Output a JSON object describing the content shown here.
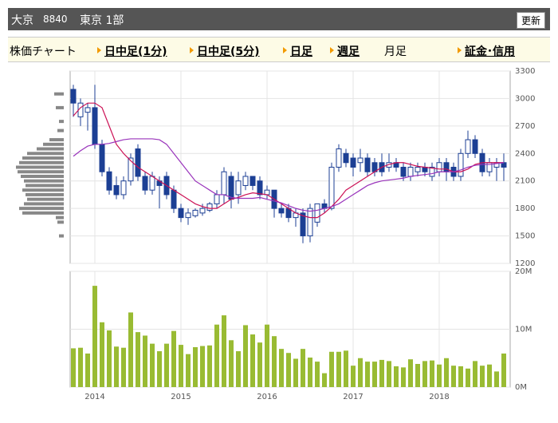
{
  "header": {
    "name": "大京",
    "code": "8840",
    "market": "東京 1部",
    "button": "更新"
  },
  "tabs": [
    "株価チャート",
    "日中足(1分)",
    "日中足(5分)",
    "日足",
    "週足",
    "月足",
    "証金･信用"
  ],
  "chart_data": [
    {
      "type": "candlestick",
      "categories": [
        null,
        null,
        null,
        "2014",
        null,
        null,
        null,
        null,
        null,
        null,
        null,
        null,
        null,
        null,
        null,
        "2015",
        null,
        null,
        null,
        null,
        null,
        null,
        null,
        null,
        null,
        null,
        null,
        "2016",
        null,
        null,
        null,
        null,
        null,
        null,
        null,
        null,
        null,
        null,
        null,
        "2017",
        null,
        null,
        null,
        null,
        null,
        null,
        null,
        null,
        null,
        null,
        null,
        "2018",
        null,
        null,
        null,
        null,
        null,
        null,
        null,
        null,
        null
      ],
      "open": [
        3100,
        2800,
        2850,
        2900,
        2500,
        2200,
        2050,
        1950,
        2100,
        2450,
        2150,
        2000,
        2100,
        2150,
        2000,
        1800,
        1700,
        1720,
        1750,
        1780,
        1850,
        1950,
        2150,
        1950,
        2050,
        2150,
        2100,
        1950,
        2000,
        1800,
        1800,
        1700,
        1750,
        1500,
        1650,
        1850,
        1800,
        2250,
        2400,
        2350,
        2300,
        2350,
        2300,
        2300,
        2250,
        2300,
        2250,
        2150,
        2200,
        2250,
        2150,
        2200,
        2300,
        2250,
        2150,
        2400,
        2550,
        2400,
        2200,
        2250,
        2300
      ],
      "high": [
        3150,
        3000,
        2950,
        3150,
        2550,
        2250,
        2150,
        2150,
        2400,
        2500,
        2200,
        2200,
        2150,
        2200,
        2050,
        1850,
        1800,
        1800,
        1850,
        1870,
        2000,
        2250,
        2200,
        2200,
        2200,
        2150,
        2150,
        2050,
        2000,
        1850,
        1850,
        1800,
        1800,
        1850,
        1850,
        1900,
        2300,
        2500,
        2450,
        2400,
        2450,
        2400,
        2350,
        2400,
        2400,
        2350,
        2300,
        2300,
        2300,
        2300,
        2300,
        2350,
        2350,
        2300,
        2450,
        2650,
        2600,
        2450,
        2350,
        2350,
        2400
      ],
      "low": [
        2800,
        2700,
        2650,
        2450,
        2150,
        1950,
        1900,
        1900,
        2050,
        2100,
        1950,
        1950,
        1800,
        1900,
        1750,
        1650,
        1620,
        1700,
        1720,
        1760,
        1800,
        1850,
        1800,
        1850,
        2000,
        2000,
        1900,
        1900,
        1700,
        1700,
        1650,
        1600,
        1420,
        1430,
        1600,
        1750,
        1780,
        2200,
        2250,
        2150,
        2200,
        2150,
        2150,
        2150,
        2200,
        2200,
        2100,
        2100,
        2150,
        2150,
        2100,
        2150,
        2100,
        2100,
        2100,
        2350,
        2350,
        2150,
        2150,
        2100,
        2100
      ],
      "close": [
        2950,
        2950,
        2900,
        2500,
        2200,
        2000,
        1950,
        2100,
        2350,
        2150,
        2000,
        2150,
        2050,
        1950,
        1800,
        1700,
        1750,
        1780,
        1800,
        1850,
        1950,
        2200,
        1900,
        2100,
        2150,
        2050,
        1950,
        2000,
        1800,
        1750,
        1700,
        1750,
        1500,
        1800,
        1850,
        1800,
        2250,
        2450,
        2300,
        2250,
        2350,
        2200,
        2200,
        2200,
        2300,
        2250,
        2150,
        2250,
        2250,
        2200,
        2250,
        2300,
        2200,
        2150,
        2400,
        2550,
        2400,
        2200,
        2300,
        2300,
        2250
      ],
      "up_color": "#ffffff",
      "down_color": "#1c3f94",
      "moving_averages": [
        {
          "color": "#cc1155",
          "values": [
            2810,
            2900,
            2950,
            2950,
            2900,
            2700,
            2500,
            2400,
            2320,
            2250,
            2200,
            2150,
            2100,
            2050,
            2000,
            1950,
            1900,
            1850,
            1820,
            1800,
            1800,
            1850,
            1900,
            1920,
            1950,
            1970,
            1960,
            1950,
            1900,
            1850,
            1800,
            1750,
            1720,
            1700,
            1700,
            1750,
            1820,
            1900,
            2000,
            2050,
            2100,
            2150,
            2200,
            2250,
            2280,
            2300,
            2300,
            2280,
            2260,
            2250,
            2240,
            2230,
            2230,
            2200,
            2200,
            2230,
            2280,
            2300,
            2300,
            2300,
            2300
          ]
        },
        {
          "color": "#9933bb",
          "values": [
            2370,
            2430,
            2480,
            2500,
            2500,
            2510,
            2530,
            2550,
            2560,
            2560,
            2560,
            2560,
            2550,
            2500,
            2400,
            2300,
            2200,
            2100,
            2050,
            2000,
            1950,
            1950,
            1920,
            1910,
            1910,
            1910,
            1920,
            1900,
            1880,
            1860,
            1830,
            1800,
            1780,
            1770,
            1780,
            1800,
            1820,
            1850,
            1900,
            1950,
            2000,
            2050,
            2080,
            2100,
            2110,
            2120,
            2130,
            2150,
            2160,
            2170,
            2180,
            2200,
            2200,
            2200,
            2220,
            2250,
            2270,
            2280,
            2280,
            2290,
            2300
          ]
        }
      ],
      "price_volume_profile": {
        "color": "#888888",
        "prices": [
          3050,
          2900,
          2750,
          2650,
          2550,
          2500,
          2450,
          2400,
          2350,
          2300,
          2250,
          2200,
          2150,
          2100,
          2050,
          2000,
          1950,
          1900,
          1850,
          1800,
          1750,
          1700,
          1650,
          1500
        ],
        "values": [
          12,
          10,
          6,
          8,
          18,
          26,
          34,
          46,
          52,
          56,
          60,
          58,
          54,
          50,
          48,
          52,
          48,
          46,
          50,
          56,
          52,
          10,
          8,
          6
        ]
      },
      "ylim": [
        1200,
        3300
      ],
      "yticks": [
        3300,
        3000,
        2700,
        2400,
        2100,
        1800,
        1500,
        1200
      ],
      "grid": true
    },
    {
      "type": "bar",
      "color": "#99bb33",
      "values": [
        6.7,
        6.8,
        5.8,
        17.5,
        11.2,
        9.8,
        7.0,
        6.8,
        12.9,
        9.5,
        8.9,
        7.5,
        6.2,
        7.5,
        9.7,
        7.3,
        5.7,
        6.9,
        7.1,
        7.2,
        10.8,
        12.4,
        8.1,
        6.2,
        10.7,
        9.1,
        7.7,
        10.8,
        8.8,
        6.6,
        5.9,
        4.9,
        6.6,
        5.1,
        4.4,
        2.4,
        6.1,
        6.1,
        6.3,
        3.7,
        5.0,
        4.4,
        4.4,
        4.7,
        4.5,
        3.6,
        3.4,
        4.8,
        4.0,
        4.5,
        4.6,
        3.9,
        5.0,
        3.7,
        3.6,
        3.2,
        4.5,
        3.7,
        3.9,
        2.7,
        5.8
      ],
      "ylim": [
        0,
        20
      ],
      "yticks": [
        {
          "value": 20,
          "label": "20M"
        },
        {
          "value": 10,
          "label": "10M"
        },
        {
          "value": 0,
          "label": "0M"
        }
      ],
      "grid": true
    }
  ]
}
